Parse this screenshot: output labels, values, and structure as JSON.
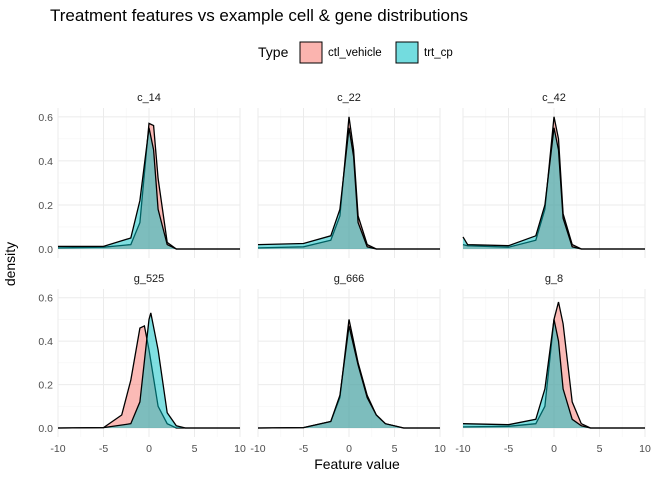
{
  "chart_data": {
    "type": "area",
    "subtype": "density",
    "title": "Treatment features vs example cell & gene distributions",
    "xlabel": "Feature value",
    "ylabel": "density",
    "xlim": [
      -10,
      10
    ],
    "ylim": [
      0,
      0.6
    ],
    "x_ticks": [
      -10,
      -5,
      0,
      5,
      10
    ],
    "y_ticks": [
      0.0,
      0.2,
      0.4,
      0.6
    ],
    "grid": true,
    "legend": {
      "title": "Type",
      "position": "top",
      "entries": [
        {
          "label": "ctl_vehicle",
          "color": "#F8766D"
        },
        {
          "label": "trt_cp",
          "color": "#00BFC4"
        }
      ]
    },
    "panels": [
      {
        "name": "c_14",
        "series": [
          {
            "name": "ctl_vehicle",
            "curve": [
              [
                -10,
                0.005
              ],
              [
                -5,
                0.008
              ],
              [
                -2,
                0.02
              ],
              [
                -1,
                0.12
              ],
              [
                0,
                0.57
              ],
              [
                0.5,
                0.56
              ],
              [
                1,
                0.32
              ],
              [
                2,
                0.03
              ],
              [
                3,
                0
              ],
              [
                10,
                0
              ]
            ]
          },
          {
            "name": "trt_cp",
            "curve": [
              [
                -10,
                0.012
              ],
              [
                -5,
                0.012
              ],
              [
                -2,
                0.05
              ],
              [
                -1,
                0.22
              ],
              [
                0,
                0.55
              ],
              [
                0.5,
                0.45
              ],
              [
                1,
                0.18
              ],
              [
                2,
                0.02
              ],
              [
                3,
                0
              ],
              [
                10,
                0
              ]
            ]
          }
        ]
      },
      {
        "name": "c_22",
        "series": [
          {
            "name": "ctl_vehicle",
            "curve": [
              [
                -10,
                0.005
              ],
              [
                -5,
                0.01
              ],
              [
                -2,
                0.04
              ],
              [
                -1,
                0.15
              ],
              [
                0,
                0.6
              ],
              [
                0.5,
                0.45
              ],
              [
                1,
                0.15
              ],
              [
                2,
                0.02
              ],
              [
                3,
                0
              ],
              [
                10,
                0
              ]
            ]
          },
          {
            "name": "trt_cp",
            "curve": [
              [
                -10,
                0.02
              ],
              [
                -5,
                0.025
              ],
              [
                -2,
                0.06
              ],
              [
                -1,
                0.18
              ],
              [
                0,
                0.55
              ],
              [
                0.5,
                0.42
              ],
              [
                1,
                0.12
              ],
              [
                2,
                0.01
              ],
              [
                3,
                0
              ],
              [
                10,
                0
              ]
            ]
          }
        ]
      },
      {
        "name": "c_42",
        "series": [
          {
            "name": "ctl_vehicle",
            "curve": [
              [
                -10,
                0.02
              ],
              [
                -9.5,
                0.015
              ],
              [
                -5,
                0.008
              ],
              [
                -2,
                0.04
              ],
              [
                -1,
                0.18
              ],
              [
                0,
                0.6
              ],
              [
                0.5,
                0.5
              ],
              [
                1,
                0.16
              ],
              [
                2,
                0.02
              ],
              [
                3,
                0
              ],
              [
                10,
                0
              ]
            ]
          },
          {
            "name": "trt_cp",
            "curve": [
              [
                -10,
                0.055
              ],
              [
                -9.5,
                0.02
              ],
              [
                -5,
                0.015
              ],
              [
                -2,
                0.06
              ],
              [
                -1,
                0.2
              ],
              [
                0,
                0.55
              ],
              [
                0.5,
                0.45
              ],
              [
                1,
                0.14
              ],
              [
                2,
                0.01
              ],
              [
                3,
                0
              ],
              [
                10,
                0
              ]
            ]
          }
        ]
      },
      {
        "name": "g_525",
        "series": [
          {
            "name": "ctl_vehicle",
            "curve": [
              [
                -10,
                0
              ],
              [
                -5,
                0.002
              ],
              [
                -3,
                0.06
              ],
              [
                -2,
                0.22
              ],
              [
                -1,
                0.46
              ],
              [
                -0.5,
                0.47
              ],
              [
                0,
                0.36
              ],
              [
                1,
                0.1
              ],
              [
                2,
                0.02
              ],
              [
                3,
                0
              ],
              [
                10,
                0
              ]
            ]
          },
          {
            "name": "trt_cp",
            "curve": [
              [
                -10,
                0
              ],
              [
                -5,
                0.002
              ],
              [
                -2,
                0.02
              ],
              [
                -1,
                0.12
              ],
              [
                0,
                0.5
              ],
              [
                0.2,
                0.53
              ],
              [
                1,
                0.36
              ],
              [
                2,
                0.07
              ],
              [
                3,
                0.01
              ],
              [
                4,
                0
              ],
              [
                10,
                0
              ]
            ]
          }
        ]
      },
      {
        "name": "g_666",
        "series": [
          {
            "name": "ctl_vehicle",
            "curve": [
              [
                -10,
                0
              ],
              [
                -5,
                0.002
              ],
              [
                -2,
                0.03
              ],
              [
                -1,
                0.14
              ],
              [
                0,
                0.5
              ],
              [
                1,
                0.3
              ],
              [
                2,
                0.15
              ],
              [
                3,
                0.06
              ],
              [
                4,
                0.02
              ],
              [
                6,
                0
              ],
              [
                10,
                0
              ]
            ]
          },
          {
            "name": "trt_cp",
            "curve": [
              [
                -10,
                0
              ],
              [
                -5,
                0.002
              ],
              [
                -2,
                0.03
              ],
              [
                -1,
                0.15
              ],
              [
                0,
                0.47
              ],
              [
                1,
                0.29
              ],
              [
                2,
                0.14
              ],
              [
                3,
                0.06
              ],
              [
                4,
                0.02
              ],
              [
                6,
                0
              ],
              [
                10,
                0
              ]
            ]
          }
        ]
      },
      {
        "name": "g_8",
        "series": [
          {
            "name": "ctl_vehicle",
            "curve": [
              [
                -10,
                0.005
              ],
              [
                -5,
                0.008
              ],
              [
                -2,
                0.02
              ],
              [
                -1,
                0.1
              ],
              [
                0,
                0.5
              ],
              [
                0.5,
                0.58
              ],
              [
                1,
                0.48
              ],
              [
                2,
                0.12
              ],
              [
                3,
                0.02
              ],
              [
                4,
                0
              ],
              [
                10,
                0
              ]
            ]
          },
          {
            "name": "trt_cp",
            "curve": [
              [
                -10,
                0.02
              ],
              [
                -5,
                0.015
              ],
              [
                -2,
                0.04
              ],
              [
                -1,
                0.18
              ],
              [
                0,
                0.5
              ],
              [
                0.5,
                0.4
              ],
              [
                1,
                0.18
              ],
              [
                2,
                0.04
              ],
              [
                3,
                0.01
              ],
              [
                4,
                0
              ],
              [
                10,
                0
              ]
            ]
          }
        ]
      }
    ]
  }
}
